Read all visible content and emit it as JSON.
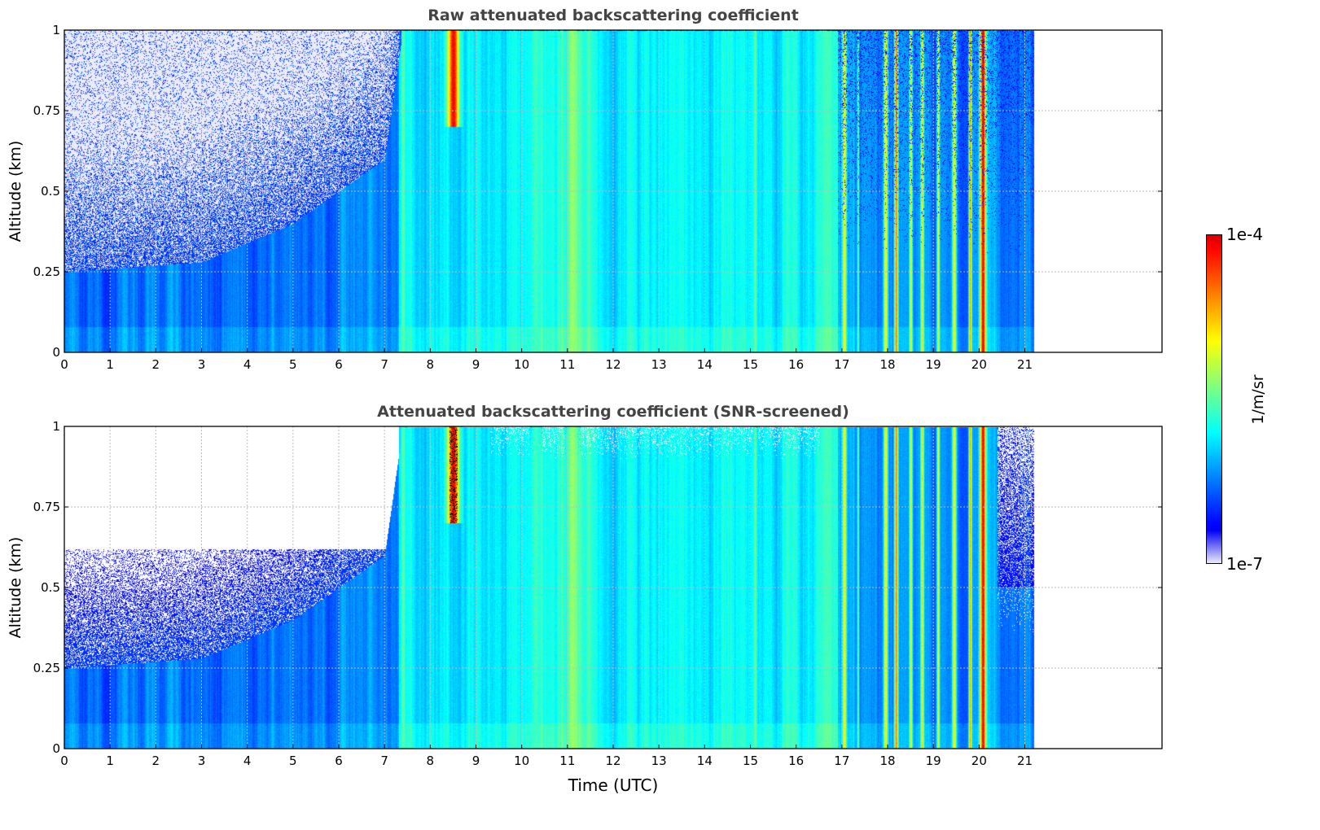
{
  "chart_data": [
    {
      "type": "heatmap",
      "title": "Raw attenuated backscattering coefficient",
      "xlabel": "",
      "ylabel": "Altitude (km)",
      "xlim": [
        0,
        24
      ],
      "ylim": [
        0,
        1
      ],
      "xticks": [
        "0",
        "1",
        "2",
        "3",
        "4",
        "5",
        "6",
        "7",
        "8",
        "9",
        "10",
        "11",
        "12",
        "13",
        "14",
        "15",
        "16",
        "17",
        "18",
        "19",
        "20",
        "21"
      ],
      "yticks": [
        "0",
        "0.25",
        "0.5",
        "0.75",
        "1"
      ],
      "grid": true,
      "snr_screened": false
    },
    {
      "type": "heatmap",
      "title": "Attenuated backscattering coefficient (SNR-screened)",
      "xlabel": "Time (UTC)",
      "ylabel": "Altitude (km)",
      "xlim": [
        0,
        24
      ],
      "ylim": [
        0,
        1
      ],
      "xticks": [
        "0",
        "1",
        "2",
        "3",
        "4",
        "5",
        "6",
        "7",
        "8",
        "9",
        "10",
        "11",
        "12",
        "13",
        "14",
        "15",
        "16",
        "17",
        "18",
        "19",
        "20",
        "21"
      ],
      "yticks": [
        "0",
        "0.25",
        "0.5",
        "0.75",
        "1"
      ],
      "grid": true,
      "snr_screened": true
    }
  ],
  "colorbar": {
    "label": "1/m/sr",
    "max_label": "1e-4",
    "min_label": "1e-7",
    "log_min": -7,
    "log_max": -4,
    "colormap": "jet"
  },
  "data_end_time_utc": 21.2,
  "boundary_layer_top_km": [
    [
      0,
      0.25
    ],
    [
      3,
      0.28
    ],
    [
      5,
      0.4
    ],
    [
      6,
      0.5
    ],
    [
      7,
      0.6
    ],
    [
      7.4,
      1.0
    ]
  ],
  "signal_events": [
    {
      "time": 8.5,
      "width": 0.12,
      "log_peak": -4.1,
      "min_alt": 0.7
    },
    {
      "time": 7.4,
      "width": 0.05,
      "log_peak": -5.5,
      "min_alt": 0
    },
    {
      "time": 10.3,
      "width": 0.08,
      "log_peak": -5.6,
      "min_alt": 0
    },
    {
      "time": 11.1,
      "width": 0.1,
      "log_peak": -5.3,
      "min_alt": 0
    },
    {
      "time": 15.1,
      "width": 0.03,
      "log_peak": -5.4,
      "min_alt": 0
    },
    {
      "time": 17.05,
      "width": 0.04,
      "log_peak": -4.9,
      "min_alt": 0
    },
    {
      "time": 17.35,
      "width": 0.02,
      "log_peak": -5.4,
      "min_alt": 0
    },
    {
      "time": 17.95,
      "width": 0.04,
      "log_peak": -4.9,
      "min_alt": 0
    },
    {
      "time": 18.18,
      "width": 0.04,
      "log_peak": -4.5,
      "min_alt": 0
    },
    {
      "time": 18.5,
      "width": 0.03,
      "log_peak": -5.0,
      "min_alt": 0
    },
    {
      "time": 18.75,
      "width": 0.03,
      "log_peak": -4.8,
      "min_alt": 0
    },
    {
      "time": 19.1,
      "width": 0.03,
      "log_peak": -5.0,
      "min_alt": 0
    },
    {
      "time": 19.45,
      "width": 0.04,
      "log_peak": -4.9,
      "min_alt": 0
    },
    {
      "time": 19.8,
      "width": 0.03,
      "log_peak": -4.6,
      "min_alt": 0
    },
    {
      "time": 20.08,
      "width": 0.06,
      "log_peak": -4.1,
      "min_alt": 0
    }
  ]
}
